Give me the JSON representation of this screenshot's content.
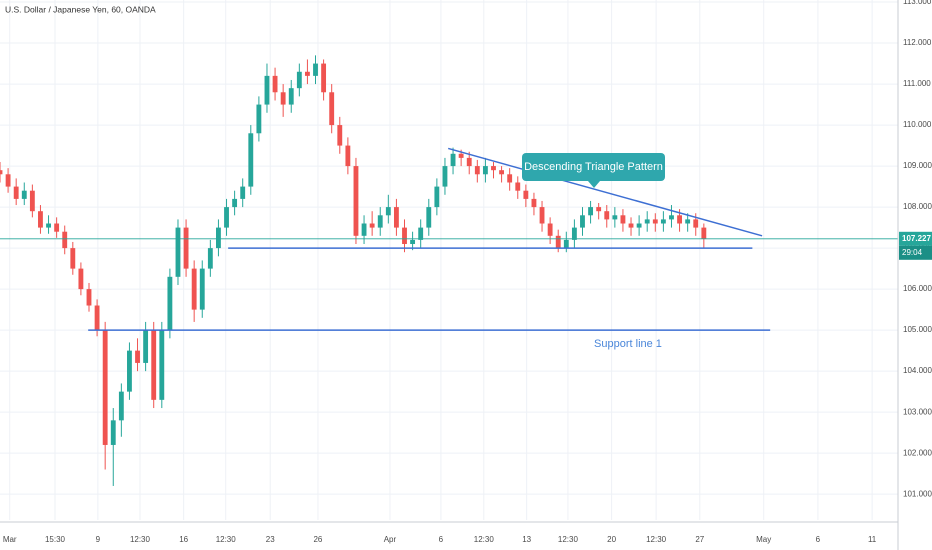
{
  "chart_data": {
    "type": "candlestick",
    "title": "U.S. Dollar / Japanese Yen, 60, OANDA",
    "up_color": "#26a69a",
    "down_color": "#ef5350",
    "grid": true,
    "xlim": [
      0,
      111
    ],
    "ylim": [
      100.37,
      113.05
    ],
    "xticks": [
      {
        "value": 1.2,
        "label": "Mar"
      },
      {
        "value": 6.8,
        "label": "15:30"
      },
      {
        "value": 12.1,
        "label": "9"
      },
      {
        "value": 17.3,
        "label": "12:30"
      },
      {
        "value": 22.7,
        "label": "16"
      },
      {
        "value": 27.9,
        "label": "12:30"
      },
      {
        "value": 33.4,
        "label": "23"
      },
      {
        "value": 39.3,
        "label": "26"
      },
      {
        "value": 48.2,
        "label": "Apr"
      },
      {
        "value": 54.5,
        "label": "6"
      },
      {
        "value": 59.8,
        "label": "12:30"
      },
      {
        "value": 65.1,
        "label": "13"
      },
      {
        "value": 70.2,
        "label": "12:30"
      },
      {
        "value": 75.6,
        "label": "20"
      },
      {
        "value": 81.1,
        "label": "12:30"
      },
      {
        "value": 86.5,
        "label": "27"
      },
      {
        "value": 94.4,
        "label": "May"
      },
      {
        "value": 101.1,
        "label": "6"
      },
      {
        "value": 107.8,
        "label": "11"
      }
    ],
    "yticks": [
      {
        "value": 101,
        "label": "101.000"
      },
      {
        "value": 102,
        "label": "102.000"
      },
      {
        "value": 103,
        "label": "103.000"
      },
      {
        "value": 104,
        "label": "104.000"
      },
      {
        "value": 105,
        "label": "105.000"
      },
      {
        "value": 106,
        "label": "106.000"
      },
      {
        "value": 107,
        "label": "107.000"
      },
      {
        "value": 108,
        "label": "108.000"
      },
      {
        "value": 109,
        "label": "109.000"
      },
      {
        "value": 110,
        "label": "110.000"
      },
      {
        "value": 111,
        "label": "111.000"
      },
      {
        "value": 112,
        "label": "112.000"
      },
      {
        "value": 113,
        "label": "113.000"
      }
    ],
    "x": [
      0,
      1,
      2,
      3,
      4,
      5,
      6,
      7,
      8,
      9,
      10,
      11,
      12,
      13,
      14,
      15,
      16,
      17,
      18,
      19,
      20,
      21,
      22,
      23,
      24,
      25,
      26,
      27,
      28,
      29,
      30,
      31,
      32,
      33,
      34,
      35,
      36,
      37,
      38,
      39,
      40,
      41,
      42,
      43,
      44,
      45,
      46,
      47,
      48,
      49,
      50,
      51,
      52,
      53,
      54,
      55,
      56,
      57,
      58,
      59,
      60,
      61,
      62,
      63,
      64,
      65,
      66,
      67,
      68,
      69,
      70,
      71,
      72,
      73,
      74,
      75,
      76,
      77,
      78,
      79,
      80,
      81,
      82,
      83,
      84,
      85,
      86,
      87
    ],
    "ohlc": [
      [
        108.9,
        109.1,
        108.6,
        108.8
      ],
      [
        108.8,
        108.95,
        108.35,
        108.5
      ],
      [
        108.5,
        108.7,
        108.05,
        108.2
      ],
      [
        108.2,
        108.6,
        108.05,
        108.4
      ],
      [
        108.4,
        108.55,
        107.75,
        107.9
      ],
      [
        107.9,
        108.05,
        107.35,
        107.5
      ],
      [
        107.5,
        107.8,
        107.35,
        107.6
      ],
      [
        107.6,
        107.75,
        107.25,
        107.4
      ],
      [
        107.4,
        107.55,
        106.85,
        107.0
      ],
      [
        107.0,
        107.15,
        106.35,
        106.5
      ],
      [
        106.5,
        106.65,
        105.85,
        106.0
      ],
      [
        106.0,
        106.15,
        105.45,
        105.6
      ],
      [
        105.6,
        105.75,
        104.85,
        105.0
      ],
      [
        105.0,
        105.2,
        101.6,
        102.2
      ],
      [
        102.2,
        103.1,
        101.2,
        102.8
      ],
      [
        102.8,
        103.7,
        102.4,
        103.5
      ],
      [
        103.5,
        104.7,
        103.3,
        104.5
      ],
      [
        104.5,
        104.8,
        104.0,
        104.2
      ],
      [
        104.2,
        105.2,
        104.0,
        105.0
      ],
      [
        105.0,
        105.2,
        103.1,
        103.3
      ],
      [
        103.3,
        105.2,
        103.1,
        105.0
      ],
      [
        105.0,
        106.5,
        104.8,
        106.3
      ],
      [
        106.3,
        107.7,
        106.1,
        107.5
      ],
      [
        107.5,
        107.7,
        106.3,
        106.5
      ],
      [
        106.5,
        106.7,
        105.2,
        105.5
      ],
      [
        105.5,
        106.7,
        105.3,
        106.5
      ],
      [
        106.5,
        107.2,
        106.3,
        107.0
      ],
      [
        107.0,
        107.7,
        106.8,
        107.5
      ],
      [
        107.5,
        108.2,
        107.3,
        108.0
      ],
      [
        108.0,
        108.4,
        107.8,
        108.2
      ],
      [
        108.2,
        108.7,
        108.0,
        108.5
      ],
      [
        108.5,
        110.0,
        108.3,
        109.8
      ],
      [
        109.8,
        110.7,
        109.6,
        110.5
      ],
      [
        110.5,
        111.5,
        110.3,
        111.2
      ],
      [
        111.2,
        111.4,
        110.6,
        110.8
      ],
      [
        110.8,
        111.0,
        110.2,
        110.5
      ],
      [
        110.5,
        111.1,
        110.3,
        110.9
      ],
      [
        110.9,
        111.5,
        110.7,
        111.3
      ],
      [
        111.3,
        111.6,
        111.0,
        111.2
      ],
      [
        111.2,
        111.7,
        111.0,
        111.5
      ],
      [
        111.5,
        111.6,
        110.6,
        110.8
      ],
      [
        110.8,
        111.0,
        109.8,
        110.0
      ],
      [
        110.0,
        110.2,
        109.3,
        109.5
      ],
      [
        109.5,
        109.7,
        108.8,
        109.0
      ],
      [
        109.0,
        109.2,
        107.1,
        107.3
      ],
      [
        107.3,
        107.8,
        107.1,
        107.6
      ],
      [
        107.6,
        107.9,
        107.3,
        107.5
      ],
      [
        107.5,
        108.0,
        107.3,
        107.8
      ],
      [
        107.8,
        108.3,
        107.6,
        108.0
      ],
      [
        108.0,
        108.2,
        107.3,
        107.5
      ],
      [
        107.5,
        107.7,
        106.9,
        107.1
      ],
      [
        107.1,
        107.4,
        106.95,
        107.2
      ],
      [
        107.2,
        107.7,
        107.0,
        107.5
      ],
      [
        107.5,
        108.2,
        107.3,
        108.0
      ],
      [
        108.0,
        108.7,
        107.8,
        108.5
      ],
      [
        108.5,
        109.2,
        108.3,
        109.0
      ],
      [
        109.0,
        109.45,
        108.8,
        109.3
      ],
      [
        109.3,
        109.4,
        109.0,
        109.2
      ],
      [
        109.2,
        109.35,
        108.8,
        109.0
      ],
      [
        109.0,
        109.15,
        108.6,
        108.8
      ],
      [
        108.8,
        109.2,
        108.6,
        109.0
      ],
      [
        109.0,
        109.1,
        108.7,
        108.9
      ],
      [
        108.9,
        109.0,
        108.6,
        108.8
      ],
      [
        108.8,
        108.95,
        108.4,
        108.6
      ],
      [
        108.6,
        108.75,
        108.2,
        108.4
      ],
      [
        108.4,
        108.55,
        108.0,
        108.2
      ],
      [
        108.2,
        108.35,
        107.8,
        108.0
      ],
      [
        108.0,
        108.15,
        107.4,
        107.6
      ],
      [
        107.6,
        107.75,
        107.1,
        107.3
      ],
      [
        107.3,
        107.45,
        106.9,
        107.0
      ],
      [
        107.0,
        107.4,
        106.9,
        107.2
      ],
      [
        107.2,
        107.7,
        107.0,
        107.5
      ],
      [
        107.5,
        108.0,
        107.3,
        107.8
      ],
      [
        107.8,
        108.15,
        107.6,
        108.0
      ],
      [
        108.0,
        108.1,
        107.7,
        107.9
      ],
      [
        107.9,
        108.05,
        107.5,
        107.7
      ],
      [
        107.7,
        108.0,
        107.5,
        107.8
      ],
      [
        107.8,
        107.95,
        107.4,
        107.6
      ],
      [
        107.6,
        107.75,
        107.3,
        107.5
      ],
      [
        107.5,
        107.8,
        107.3,
        107.6
      ],
      [
        107.6,
        107.9,
        107.4,
        107.7
      ],
      [
        107.7,
        107.85,
        107.4,
        107.6
      ],
      [
        107.6,
        107.9,
        107.4,
        107.7
      ],
      [
        107.7,
        108.05,
        107.5,
        107.8
      ],
      [
        107.8,
        107.95,
        107.4,
        107.6
      ],
      [
        107.6,
        107.85,
        107.4,
        107.7
      ],
      [
        107.7,
        107.85,
        107.3,
        107.5
      ],
      [
        107.5,
        107.6,
        107.0,
        107.23
      ]
    ],
    "last_price": 107.227,
    "last_price_color": "#26a69a",
    "countdown": "29:04",
    "drawings": [
      {
        "x": [
          55.4,
          94.2
        ],
        "y": [
          109.43,
          107.3
        ],
        "color": "#3d6fd3"
      },
      {
        "x": [
          28.2,
          93.0
        ],
        "y": [
          107.0,
          107.0
        ],
        "color": "#3d6fd3"
      },
      {
        "x": [
          10.9,
          95.2
        ],
        "y": [
          105.0,
          105.0
        ],
        "color": "#3d6fd3"
      }
    ],
    "callout": "Descending Triangle Pattern",
    "callout_color": "#2fa7ad",
    "support_label": "Support line 1",
    "support_label_color": "#4a86d9"
  }
}
